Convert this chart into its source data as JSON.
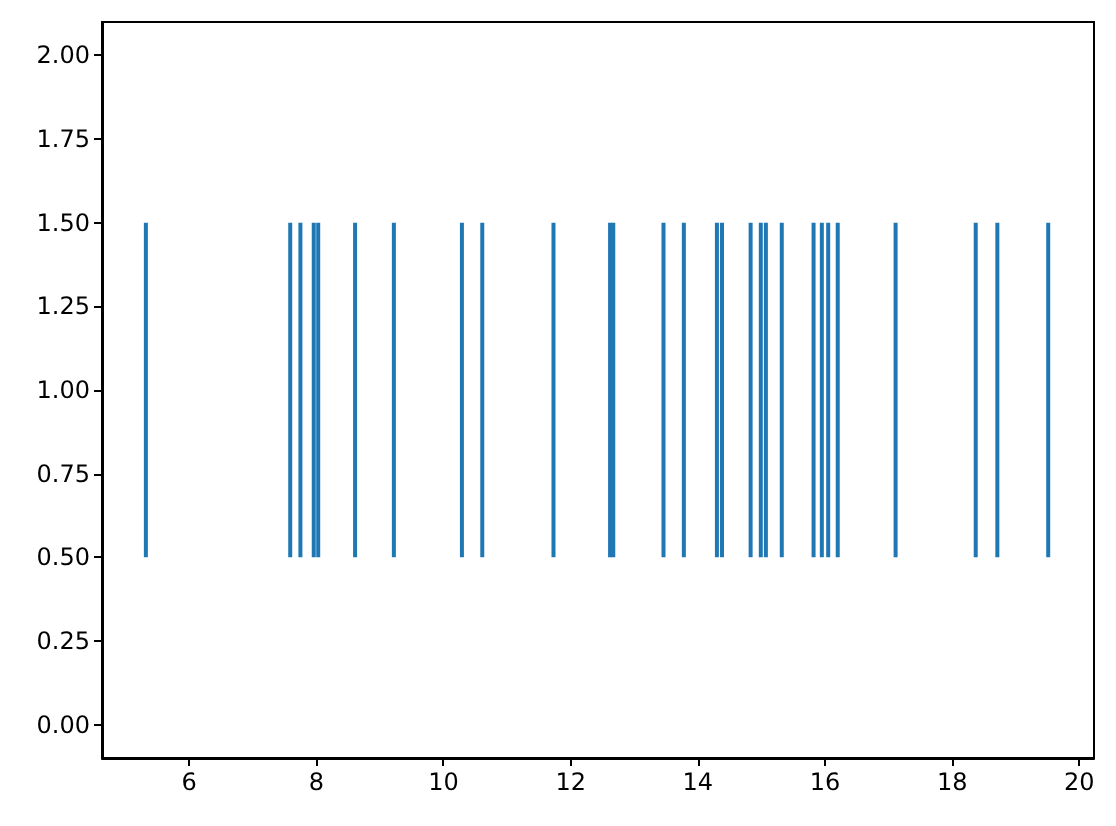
{
  "chart_data": {
    "type": "bar",
    "color": "#1f77b4",
    "x": [
      5.32,
      7.59,
      7.75,
      7.96,
      8.03,
      8.61,
      9.22,
      10.29,
      10.61,
      11.73,
      12.62,
      12.67,
      13.46,
      13.78,
      14.3,
      14.38,
      14.83,
      14.99,
      15.07,
      15.32,
      15.82,
      15.95,
      16.05,
      16.2,
      17.11,
      18.37,
      18.71,
      19.51
    ],
    "values": [
      1,
      1,
      1,
      1,
      1,
      1,
      1,
      1,
      1,
      1,
      1,
      1,
      1,
      1,
      1,
      1,
      1,
      1,
      1,
      1,
      1,
      1,
      1,
      1,
      1,
      1,
      1,
      1
    ],
    "base": [
      0.5,
      0.5,
      0.5,
      0.5,
      0.5,
      0.5,
      0.5,
      0.5,
      0.5,
      0.5,
      0.5,
      0.5,
      0.5,
      0.5,
      0.5,
      0.5,
      0.5,
      0.5,
      0.5,
      0.5,
      0.5,
      0.5,
      0.5,
      0.5,
      0.5,
      0.5,
      0.5,
      0.5
    ],
    "xlim": [
      4.63,
      20.23
    ],
    "ylim": [
      -0.1,
      2.1
    ],
    "xticks": [
      6,
      8,
      10,
      12,
      14,
      16,
      18,
      20
    ],
    "yticks": [
      {
        "value": 0,
        "label": "0.00"
      },
      {
        "value": 0.25,
        "label": "0.25"
      },
      {
        "value": 0.5,
        "label": "0.50"
      },
      {
        "value": 0.75,
        "label": "0.75"
      },
      {
        "value": 1,
        "label": "1.00"
      },
      {
        "value": 1.25,
        "label": "1.25"
      },
      {
        "value": 1.5,
        "label": "1.50"
      },
      {
        "value": 1.75,
        "label": "1.75"
      },
      {
        "value": 2,
        "label": "2.00"
      }
    ],
    "grid": false
  }
}
